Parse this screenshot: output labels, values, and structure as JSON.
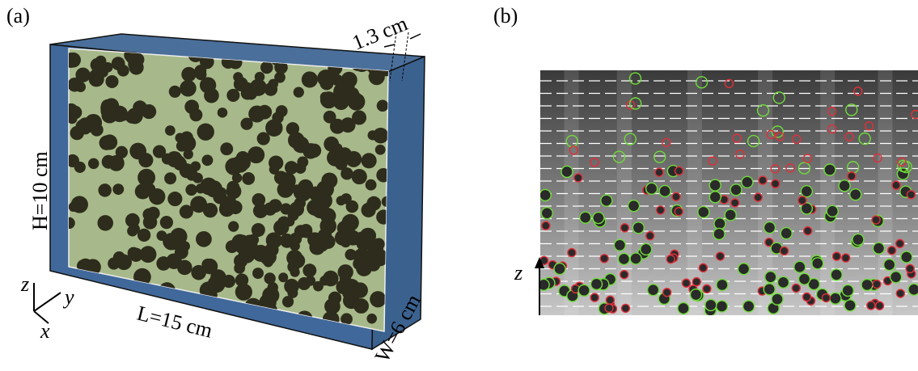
{
  "panel_a": {
    "label": "(a)",
    "gap_label": "1.3 cm",
    "height_label": "H=10 cm",
    "length_label": "L=15 cm",
    "width_label": "W=6 cm",
    "axis_z": "z",
    "axis_y": "y",
    "axis_x": "x"
  },
  "panel_b": {
    "label": "(b)",
    "axis_z": "z"
  }
}
